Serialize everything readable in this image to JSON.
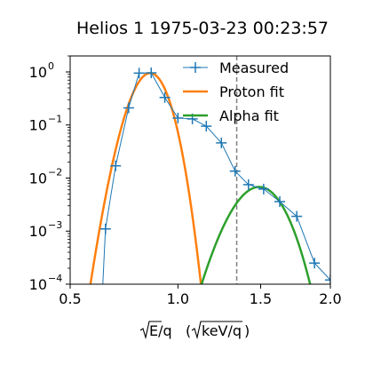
{
  "chart_data": {
    "type": "line",
    "title": "Helios 1 1975-03-23 00:23:57",
    "xlabel_core": "E/q",
    "xlabel_unit": "keV/q",
    "x_scale": "sqrt",
    "y_scale": "log",
    "xlim": [
      0.5,
      2.0
    ],
    "ylim": [
      0.0001,
      2.0
    ],
    "x_ticks": [
      {
        "value": 0.5,
        "label": "0.5"
      },
      {
        "value": 1.0,
        "label": "1.0"
      },
      {
        "value": 1.5,
        "label": "1.5"
      },
      {
        "value": 2.0,
        "label": "2.0"
      }
    ],
    "y_ticks": [
      {
        "value": 1.0,
        "base": "10",
        "exp": "0"
      },
      {
        "value": 0.1,
        "base": "10",
        "exp": "−1"
      },
      {
        "value": 0.01,
        "base": "10",
        "exp": "−2"
      },
      {
        "value": 0.001,
        "base": "10",
        "exp": "−3"
      },
      {
        "value": 0.0001,
        "base": "10",
        "exp": "−4"
      }
    ],
    "vline": {
      "x": 1.345,
      "style": "dashed",
      "color": "#808080"
    },
    "legend_position": "top-right",
    "series": [
      {
        "name": "Measured",
        "kind": "markers-line",
        "color": "#1f77b4",
        "x": [
          0.63,
          0.645,
          0.69,
          0.75,
          0.8,
          0.86,
          0.93,
          1.0,
          1.08,
          1.16,
          1.25,
          1.335,
          1.42,
          1.52,
          1.63,
          1.75,
          1.88,
          2.0
        ],
        "y": [
          5e-05,
          0.0011,
          0.017,
          0.21,
          0.95,
          0.96,
          0.33,
          0.135,
          0.13,
          0.095,
          0.046,
          0.0135,
          0.0075,
          0.0062,
          0.0036,
          0.0019,
          0.00025,
          0.00012
        ]
      },
      {
        "name": "Proton fit",
        "kind": "curve",
        "color": "#ff7f0e",
        "peak_x": 0.855,
        "peak_y": 0.95,
        "sigma": 0.064
      },
      {
        "name": "Alpha fit",
        "kind": "curve",
        "color": "#2ca02c",
        "peak_x": 1.49,
        "peak_y": 0.0068,
        "sigma": 0.123
      }
    ]
  }
}
